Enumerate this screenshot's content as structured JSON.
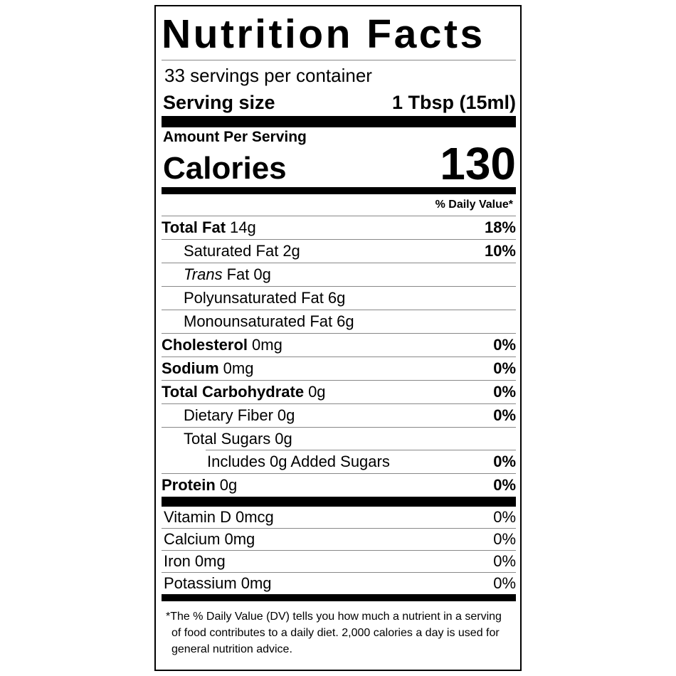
{
  "title": "Nutrition Facts",
  "servings": "33 servings per container",
  "serving_size": {
    "label": "Serving size",
    "value": "1 Tbsp (15ml)"
  },
  "amount_per_serving": "Amount Per Serving",
  "calories": {
    "label": "Calories",
    "value": "130"
  },
  "dv_header": "% Daily Value*",
  "nutrients": [
    {
      "name": "Total Fat",
      "amount": "14g",
      "dv": "18%"
    },
    {
      "name": "Saturated Fat",
      "amount": "2g",
      "dv": "10%"
    },
    {
      "prefix": "Trans",
      "name": "Fat",
      "amount": "0g"
    },
    {
      "name": "Polyunsaturated Fat",
      "amount": "6g"
    },
    {
      "name": "Monounsaturated Fat",
      "amount": "6g"
    },
    {
      "name": "Cholesterol",
      "amount": "0mg",
      "dv": "0%"
    },
    {
      "name": "Sodium",
      "amount": "0mg",
      "dv": "0%"
    },
    {
      "name": "Total Carbohydrate",
      "amount": "0g",
      "dv": "0%"
    },
    {
      "name": "Dietary Fiber",
      "amount": "0g",
      "dv": "0%"
    },
    {
      "name": "Total Sugars",
      "amount": "0g"
    },
    {
      "name": "Includes 0g Added Sugars",
      "dv": "0%"
    },
    {
      "name": "Protein",
      "amount": "0g",
      "dv": "0%"
    }
  ],
  "vitamins": [
    {
      "name": "Vitamin D",
      "amount": "0mcg",
      "dv": "0%"
    },
    {
      "name": "Calcium",
      "amount": "0mg",
      "dv": "0%"
    },
    {
      "name": "Iron",
      "amount": "0mg",
      "dv": "0%"
    },
    {
      "name": "Potassium",
      "amount": "0mg",
      "dv": "0%"
    }
  ],
  "footnote": "*The % Daily Value (DV) tells you how much a nutrient in a serving of food contributes to a daily diet. 2,000 calories a day is used for general nutrition advice."
}
